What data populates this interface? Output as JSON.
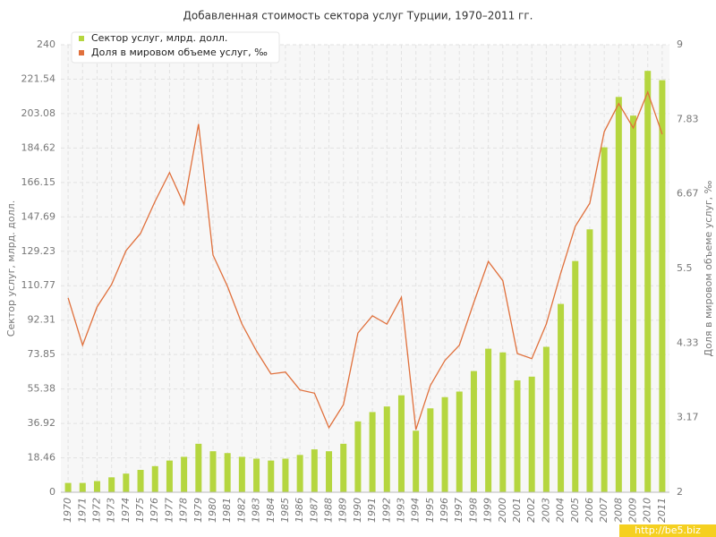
{
  "chart_data": {
    "type": "bar",
    "title": "Добавленная стоимость сектора услуг Турции, 1970–2011 гг.",
    "y_label": "Сектор услуг, млрд. долл.",
    "y2_label": "Доля в мировом объеме услуг, ‰",
    "watermark": "http://be5.biz",
    "categories": [
      "1970",
      "1971",
      "1972",
      "1973",
      "1974",
      "1975",
      "1976",
      "1977",
      "1978",
      "1979",
      "1980",
      "1981",
      "1982",
      "1983",
      "1984",
      "1985",
      "1986",
      "1987",
      "1988",
      "1989",
      "1990",
      "1991",
      "1992",
      "1993",
      "1994",
      "1995",
      "1996",
      "1997",
      "1998",
      "1999",
      "2000",
      "2001",
      "2002",
      "2003",
      "2004",
      "2005",
      "2006",
      "2007",
      "2008",
      "2009",
      "2010",
      "2011"
    ],
    "series": [
      {
        "name": "Сектор услуг, млрд. долл.",
        "type": "bar",
        "color": "#b5d63f",
        "values": [
          5,
          5,
          6,
          8,
          10,
          12,
          14,
          17,
          19,
          26,
          22,
          21,
          19,
          18,
          17,
          18,
          20,
          23,
          22,
          26,
          38,
          43,
          46,
          52,
          33,
          45,
          51,
          54,
          65,
          77,
          75,
          60,
          62,
          78,
          101,
          124,
          141,
          185,
          212,
          202,
          226,
          221
        ]
      },
      {
        "name": "Доля в мировом объеме услуг, ‰",
        "type": "line",
        "axis": "y2",
        "color": "#e0703c",
        "values": [
          5.04,
          4.3,
          4.9,
          5.25,
          5.78,
          6.05,
          6.55,
          7.0,
          6.5,
          7.76,
          5.71,
          5.22,
          4.63,
          4.21,
          3.85,
          3.88,
          3.6,
          3.55,
          3.01,
          3.37,
          4.49,
          4.76,
          4.63,
          5.05,
          2.98,
          3.67,
          4.06,
          4.3,
          4.97,
          5.61,
          5.31,
          4.17,
          4.09,
          4.63,
          5.43,
          6.16,
          6.52,
          7.64,
          8.08,
          7.7,
          8.26,
          7.6
        ]
      }
    ],
    "ylim": [
      0,
      240
    ],
    "yticks": [
      0,
      18.46,
      36.92,
      55.38,
      73.85,
      92.31,
      110.77,
      129.23,
      147.69,
      166.15,
      184.62,
      203.08,
      221.54,
      240
    ],
    "y2lim": [
      2,
      9
    ],
    "y2ticks": [
      2,
      3.17,
      4.33,
      5.5,
      6.67,
      7.83,
      9
    ],
    "grid": true,
    "legend": "top-left"
  }
}
